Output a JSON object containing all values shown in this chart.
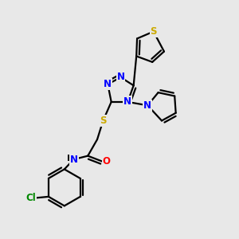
{
  "background_color": "#e8e8e8",
  "atom_colors": {
    "N": "#0000ff",
    "S": "#ccaa00",
    "O": "#ff0000",
    "Cl": "#008800",
    "C": "#000000",
    "H": "#000000"
  },
  "bond_color": "#000000",
  "bond_width": 1.6,
  "fig_width": 3.0,
  "fig_height": 3.0,
  "dpi": 100
}
